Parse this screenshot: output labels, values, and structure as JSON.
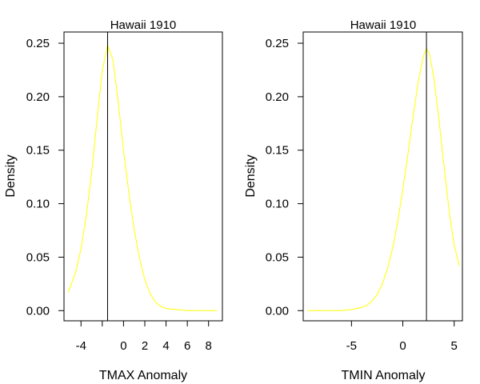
{
  "colors": {
    "curve": "#ffff00",
    "frame": "#000000",
    "marker": "#000000",
    "background": "#ffffff"
  },
  "chart_data": [
    {
      "type": "line",
      "title": "Hawaii 1910",
      "xlabel": "TMAX Anomaly",
      "ylabel": "Density",
      "xlim": [
        -5.6,
        9.3
      ],
      "ylim": [
        -0.0095,
        0.2605
      ],
      "x_ticks": [
        -4,
        -2,
        0,
        2,
        4,
        6,
        8
      ],
      "x_tick_labels": [
        "-4",
        "",
        "0",
        "2",
        "4",
        "6",
        "8"
      ],
      "y_ticks": [
        0.0,
        0.05,
        0.1,
        0.15,
        0.2,
        0.25
      ],
      "y_tick_labels": [
        "0.00",
        "0.05",
        "0.10",
        "0.15",
        "0.20",
        "0.25"
      ],
      "grid": false,
      "vline_x": -1.5,
      "series": [
        {
          "x": [
            -5.2,
            -4.5,
            -4.0,
            -3.5,
            -3.0,
            -2.5,
            -2.0,
            -1.5,
            -1.0,
            -0.5,
            0.0,
            0.5,
            1.0,
            1.5,
            2.0,
            2.5,
            3.0,
            3.5,
            4.0,
            5.0,
            6.0,
            7.0,
            8.0,
            8.8
          ],
          "y": [
            0.017,
            0.036,
            0.058,
            0.089,
            0.129,
            0.178,
            0.224,
            0.248,
            0.235,
            0.195,
            0.15,
            0.11,
            0.076,
            0.049,
            0.029,
            0.016,
            0.008,
            0.004,
            0.002,
            0.001,
            0.0,
            0.0,
            0.0,
            0.0
          ]
        }
      ]
    },
    {
      "type": "line",
      "title": "Hawaii 1910",
      "xlabel": "TMIN Anomaly",
      "ylabel": "Density",
      "xlim": [
        -9.7,
        5.8
      ],
      "ylim": [
        -0.0095,
        0.2605
      ],
      "x_ticks": [
        -5,
        0,
        5
      ],
      "x_tick_labels": [
        "-5",
        "0",
        "5"
      ],
      "y_ticks": [
        0.0,
        0.05,
        0.1,
        0.15,
        0.2,
        0.25
      ],
      "y_tick_labels": [
        "0.00",
        "0.05",
        "0.10",
        "0.15",
        "0.20",
        "0.25"
      ],
      "grid": false,
      "vline_x": 2.3,
      "series": [
        {
          "x": [
            -9.3,
            -8.0,
            -7.0,
            -6.0,
            -5.0,
            -4.5,
            -4.0,
            -3.5,
            -3.0,
            -2.5,
            -2.0,
            -1.5,
            -1.0,
            -0.5,
            0.0,
            0.5,
            1.0,
            1.5,
            2.0,
            2.3,
            2.6,
            3.0,
            3.5,
            4.0,
            4.5,
            5.0,
            5.5
          ],
          "y": [
            0.0,
            0.0,
            0.0,
            0.0,
            0.001,
            0.002,
            0.003,
            0.005,
            0.009,
            0.015,
            0.025,
            0.039,
            0.058,
            0.083,
            0.113,
            0.147,
            0.182,
            0.214,
            0.238,
            0.245,
            0.24,
            0.219,
            0.18,
            0.136,
            0.094,
            0.061,
            0.042
          ]
        }
      ]
    }
  ]
}
